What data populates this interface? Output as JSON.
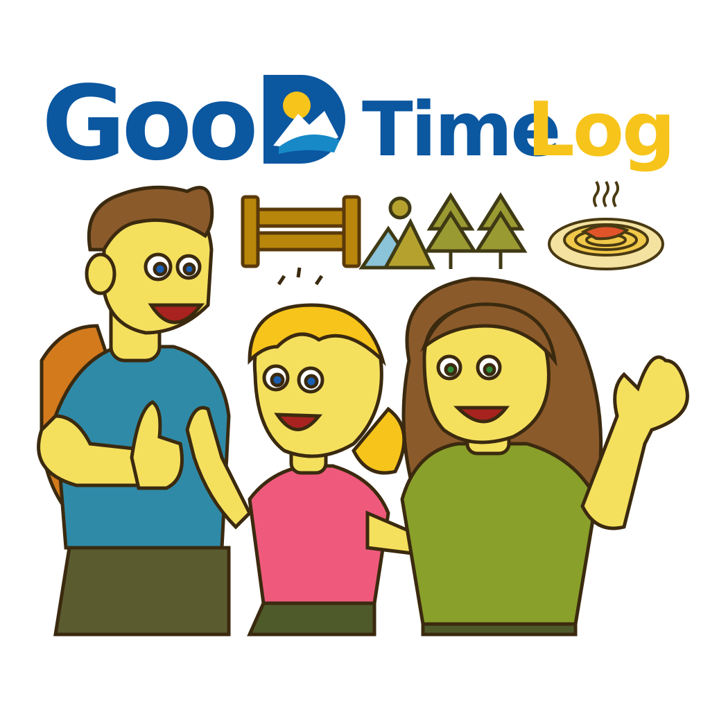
{
  "logo": {
    "part1": "Goo",
    "part2": "Time",
    "part3": "Log",
    "colors": {
      "blue": "#0b57a0",
      "yellow": "#f7c41b",
      "teal": "#1789c7"
    }
  },
  "icons": [
    "fence-icon",
    "mountains-sun-icon",
    "pine-tree-icon",
    "pine-tree-icon",
    "spaghetti-plate-icon"
  ],
  "characters": [
    {
      "name": "man-with-backpack",
      "shirt": "#2f8aa8",
      "pants": "#5a5c30"
    },
    {
      "name": "girl-blonde",
      "shirt": "#ef5a7c",
      "pants": "#4f5a2b"
    },
    {
      "name": "woman-brown-hair",
      "shirt": "#89a02b",
      "pants": "#4f5a2b"
    }
  ]
}
